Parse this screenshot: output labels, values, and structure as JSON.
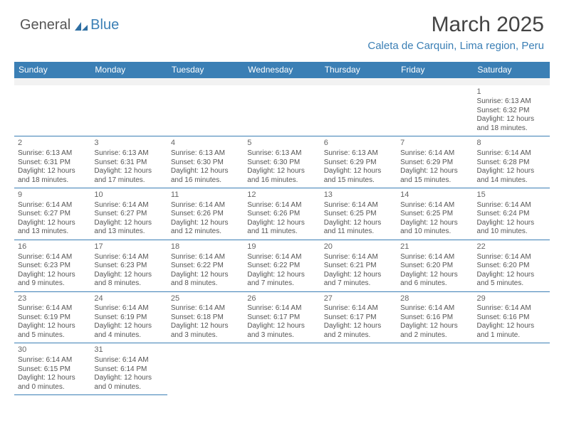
{
  "logo": {
    "part1": "General",
    "part2": "Blue"
  },
  "title": "March 2025",
  "subtitle": "Caleta de Carquin, Lima region, Peru",
  "colors": {
    "header_bg": "#3b7fb5",
    "header_text": "#ffffff",
    "cell_border": "#3b7fb5",
    "body_text": "#555555",
    "accent": "#3b7fb5"
  },
  "day_headers": [
    "Sunday",
    "Monday",
    "Tuesday",
    "Wednesday",
    "Thursday",
    "Friday",
    "Saturday"
  ],
  "weeks": [
    [
      null,
      null,
      null,
      null,
      null,
      null,
      {
        "n": 1,
        "sr": "Sunrise: 6:13 AM",
        "ss": "Sunset: 6:32 PM",
        "dl1": "Daylight: 12 hours",
        "dl2": "and 18 minutes."
      }
    ],
    [
      {
        "n": 2,
        "sr": "Sunrise: 6:13 AM",
        "ss": "Sunset: 6:31 PM",
        "dl1": "Daylight: 12 hours",
        "dl2": "and 18 minutes."
      },
      {
        "n": 3,
        "sr": "Sunrise: 6:13 AM",
        "ss": "Sunset: 6:31 PM",
        "dl1": "Daylight: 12 hours",
        "dl2": "and 17 minutes."
      },
      {
        "n": 4,
        "sr": "Sunrise: 6:13 AM",
        "ss": "Sunset: 6:30 PM",
        "dl1": "Daylight: 12 hours",
        "dl2": "and 16 minutes."
      },
      {
        "n": 5,
        "sr": "Sunrise: 6:13 AM",
        "ss": "Sunset: 6:30 PM",
        "dl1": "Daylight: 12 hours",
        "dl2": "and 16 minutes."
      },
      {
        "n": 6,
        "sr": "Sunrise: 6:13 AM",
        "ss": "Sunset: 6:29 PM",
        "dl1": "Daylight: 12 hours",
        "dl2": "and 15 minutes."
      },
      {
        "n": 7,
        "sr": "Sunrise: 6:14 AM",
        "ss": "Sunset: 6:29 PM",
        "dl1": "Daylight: 12 hours",
        "dl2": "and 15 minutes."
      },
      {
        "n": 8,
        "sr": "Sunrise: 6:14 AM",
        "ss": "Sunset: 6:28 PM",
        "dl1": "Daylight: 12 hours",
        "dl2": "and 14 minutes."
      }
    ],
    [
      {
        "n": 9,
        "sr": "Sunrise: 6:14 AM",
        "ss": "Sunset: 6:27 PM",
        "dl1": "Daylight: 12 hours",
        "dl2": "and 13 minutes."
      },
      {
        "n": 10,
        "sr": "Sunrise: 6:14 AM",
        "ss": "Sunset: 6:27 PM",
        "dl1": "Daylight: 12 hours",
        "dl2": "and 13 minutes."
      },
      {
        "n": 11,
        "sr": "Sunrise: 6:14 AM",
        "ss": "Sunset: 6:26 PM",
        "dl1": "Daylight: 12 hours",
        "dl2": "and 12 minutes."
      },
      {
        "n": 12,
        "sr": "Sunrise: 6:14 AM",
        "ss": "Sunset: 6:26 PM",
        "dl1": "Daylight: 12 hours",
        "dl2": "and 11 minutes."
      },
      {
        "n": 13,
        "sr": "Sunrise: 6:14 AM",
        "ss": "Sunset: 6:25 PM",
        "dl1": "Daylight: 12 hours",
        "dl2": "and 11 minutes."
      },
      {
        "n": 14,
        "sr": "Sunrise: 6:14 AM",
        "ss": "Sunset: 6:25 PM",
        "dl1": "Daylight: 12 hours",
        "dl2": "and 10 minutes."
      },
      {
        "n": 15,
        "sr": "Sunrise: 6:14 AM",
        "ss": "Sunset: 6:24 PM",
        "dl1": "Daylight: 12 hours",
        "dl2": "and 10 minutes."
      }
    ],
    [
      {
        "n": 16,
        "sr": "Sunrise: 6:14 AM",
        "ss": "Sunset: 6:23 PM",
        "dl1": "Daylight: 12 hours",
        "dl2": "and 9 minutes."
      },
      {
        "n": 17,
        "sr": "Sunrise: 6:14 AM",
        "ss": "Sunset: 6:23 PM",
        "dl1": "Daylight: 12 hours",
        "dl2": "and 8 minutes."
      },
      {
        "n": 18,
        "sr": "Sunrise: 6:14 AM",
        "ss": "Sunset: 6:22 PM",
        "dl1": "Daylight: 12 hours",
        "dl2": "and 8 minutes."
      },
      {
        "n": 19,
        "sr": "Sunrise: 6:14 AM",
        "ss": "Sunset: 6:22 PM",
        "dl1": "Daylight: 12 hours",
        "dl2": "and 7 minutes."
      },
      {
        "n": 20,
        "sr": "Sunrise: 6:14 AM",
        "ss": "Sunset: 6:21 PM",
        "dl1": "Daylight: 12 hours",
        "dl2": "and 7 minutes."
      },
      {
        "n": 21,
        "sr": "Sunrise: 6:14 AM",
        "ss": "Sunset: 6:20 PM",
        "dl1": "Daylight: 12 hours",
        "dl2": "and 6 minutes."
      },
      {
        "n": 22,
        "sr": "Sunrise: 6:14 AM",
        "ss": "Sunset: 6:20 PM",
        "dl1": "Daylight: 12 hours",
        "dl2": "and 5 minutes."
      }
    ],
    [
      {
        "n": 23,
        "sr": "Sunrise: 6:14 AM",
        "ss": "Sunset: 6:19 PM",
        "dl1": "Daylight: 12 hours",
        "dl2": "and 5 minutes."
      },
      {
        "n": 24,
        "sr": "Sunrise: 6:14 AM",
        "ss": "Sunset: 6:19 PM",
        "dl1": "Daylight: 12 hours",
        "dl2": "and 4 minutes."
      },
      {
        "n": 25,
        "sr": "Sunrise: 6:14 AM",
        "ss": "Sunset: 6:18 PM",
        "dl1": "Daylight: 12 hours",
        "dl2": "and 3 minutes."
      },
      {
        "n": 26,
        "sr": "Sunrise: 6:14 AM",
        "ss": "Sunset: 6:17 PM",
        "dl1": "Daylight: 12 hours",
        "dl2": "and 3 minutes."
      },
      {
        "n": 27,
        "sr": "Sunrise: 6:14 AM",
        "ss": "Sunset: 6:17 PM",
        "dl1": "Daylight: 12 hours",
        "dl2": "and 2 minutes."
      },
      {
        "n": 28,
        "sr": "Sunrise: 6:14 AM",
        "ss": "Sunset: 6:16 PM",
        "dl1": "Daylight: 12 hours",
        "dl2": "and 2 minutes."
      },
      {
        "n": 29,
        "sr": "Sunrise: 6:14 AM",
        "ss": "Sunset: 6:16 PM",
        "dl1": "Daylight: 12 hours",
        "dl2": "and 1 minute."
      }
    ],
    [
      {
        "n": 30,
        "sr": "Sunrise: 6:14 AM",
        "ss": "Sunset: 6:15 PM",
        "dl1": "Daylight: 12 hours",
        "dl2": "and 0 minutes."
      },
      {
        "n": 31,
        "sr": "Sunrise: 6:14 AM",
        "ss": "Sunset: 6:14 PM",
        "dl1": "Daylight: 12 hours",
        "dl2": "and 0 minutes."
      },
      null,
      null,
      null,
      null,
      null
    ]
  ]
}
